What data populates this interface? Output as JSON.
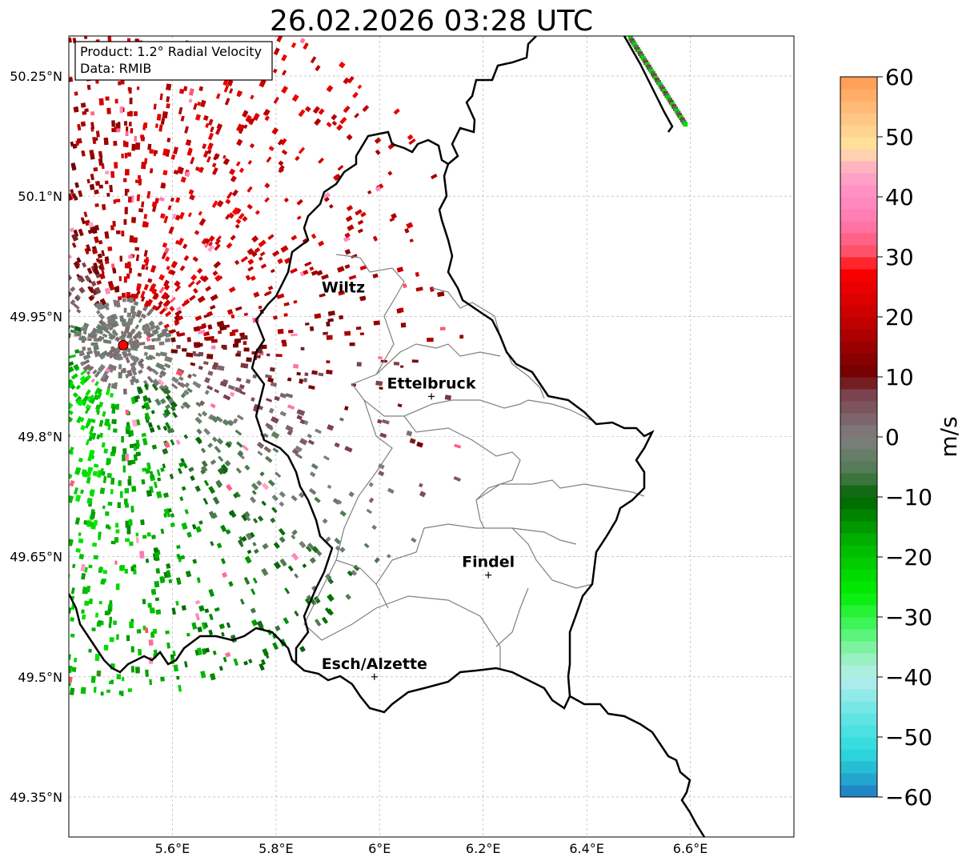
{
  "title": "26.02.2026 03:28 UTC",
  "info_box": {
    "line1": "Product: 1.2° Radial Velocity",
    "line2": "Data: RMIB"
  },
  "map": {
    "lon_range": [
      5.4,
      6.8
    ],
    "lat_range": [
      49.3,
      50.3
    ],
    "lon_ticks": [
      {
        "value": 5.6,
        "label": "5.6°E"
      },
      {
        "value": 5.8,
        "label": "5.8°E"
      },
      {
        "value": 6.0,
        "label": "6°E"
      },
      {
        "value": 6.2,
        "label": "6.2°E"
      },
      {
        "value": 6.4,
        "label": "6.4°E"
      },
      {
        "value": 6.6,
        "label": "6.6°E"
      }
    ],
    "lat_ticks": [
      {
        "value": 50.25,
        "label": "50.25°N"
      },
      {
        "value": 50.1,
        "label": "50.1°N"
      },
      {
        "value": 49.95,
        "label": "49.95°N"
      },
      {
        "value": 49.8,
        "label": "49.8°N"
      },
      {
        "value": 49.65,
        "label": "49.65°N"
      },
      {
        "value": 49.5,
        "label": "49.5°N"
      },
      {
        "value": 49.35,
        "label": "49.35°N"
      }
    ],
    "radar_site": {
      "lon": 5.505,
      "lat": 49.914,
      "color": "#ff0000"
    },
    "cities": [
      {
        "name": "Wiltz",
        "lon": 5.93,
        "lat": 49.97,
        "marker": false
      },
      {
        "name": "Ettelbruck",
        "lon": 6.1,
        "lat": 49.85,
        "marker": true
      },
      {
        "name": "Findel",
        "lon": 6.21,
        "lat": 49.627,
        "marker": true
      },
      {
        "name": "Esch/Alzette",
        "lon": 5.99,
        "lat": 49.5,
        "marker": true
      }
    ],
    "border_color": "#000000",
    "district_color": "#808080"
  },
  "colorbar": {
    "label": "m/s",
    "min": -60,
    "max": 60,
    "ticks": [
      {
        "value": 60,
        "label": "60"
      },
      {
        "value": 50,
        "label": "50"
      },
      {
        "value": 40,
        "label": "40"
      },
      {
        "value": 30,
        "label": "30"
      },
      {
        "value": 20,
        "label": "20"
      },
      {
        "value": 10,
        "label": "10"
      },
      {
        "value": 0,
        "label": "0"
      },
      {
        "value": -10,
        "label": "−10"
      },
      {
        "value": -20,
        "label": "−20"
      },
      {
        "value": -30,
        "label": "−30"
      },
      {
        "value": -40,
        "label": "−40"
      },
      {
        "value": -50,
        "label": "−50"
      },
      {
        "value": -60,
        "label": "−60"
      }
    ],
    "stops": [
      {
        "v": -60,
        "c": "#1f78c4"
      },
      {
        "v": -56,
        "c": "#24b4d0"
      },
      {
        "v": -52,
        "c": "#2edddd"
      },
      {
        "v": -46,
        "c": "#6ae4e4"
      },
      {
        "v": -40,
        "c": "#b7eeee"
      },
      {
        "v": -36,
        "c": "#8ef2b0"
      },
      {
        "v": -32,
        "c": "#4af56a"
      },
      {
        "v": -26,
        "c": "#00ee00"
      },
      {
        "v": -18,
        "c": "#00b800"
      },
      {
        "v": -10,
        "c": "#006400"
      },
      {
        "v": -6,
        "c": "#4e7a50"
      },
      {
        "v": 0,
        "c": "#7f7f7f"
      },
      {
        "v": 4,
        "c": "#7e5c66"
      },
      {
        "v": 8,
        "c": "#7a3b44"
      },
      {
        "v": 10,
        "c": "#6e0000"
      },
      {
        "v": 20,
        "c": "#c80000"
      },
      {
        "v": 28,
        "c": "#ff0000"
      },
      {
        "v": 30,
        "c": "#ff4a5a"
      },
      {
        "v": 36,
        "c": "#ff7ab0"
      },
      {
        "v": 42,
        "c": "#ff96c8"
      },
      {
        "v": 46,
        "c": "#ffbcbc"
      },
      {
        "v": 48,
        "c": "#ffe6a0"
      },
      {
        "v": 54,
        "c": "#ffc080"
      },
      {
        "v": 60,
        "c": "#ff9a50"
      }
    ]
  }
}
